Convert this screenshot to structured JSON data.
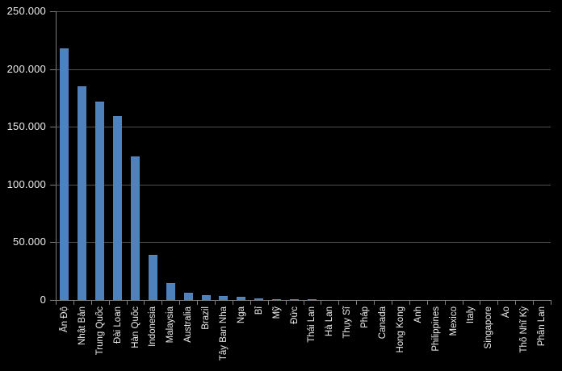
{
  "chart_data": {
    "type": "bar",
    "title": "",
    "xlabel": "",
    "ylabel": "",
    "categories": [
      "Ấn Độ",
      "Nhật Bản",
      "Trung Quốc",
      "Đài Loan",
      "Hàn Quốc",
      "Indonesia",
      "Malaysia",
      "Australia",
      "Brazil",
      "Tây Ban Nha",
      "Nga",
      "Bỉ",
      "Mỹ",
      "Đức",
      "Thái Lan",
      "Hà Lan",
      "Thụy Sĩ",
      "Pháp",
      "Canada",
      "Hong Kong",
      "Anh",
      "Philippines",
      "Mexico",
      "Italy",
      "Singapore",
      "Áo",
      "Thổ Nhĩ Kỳ",
      "Phần Lan"
    ],
    "values": [
      218000,
      185000,
      172000,
      159000,
      124000,
      39000,
      15000,
      6500,
      4200,
      3500,
      2800,
      1600,
      1000,
      500,
      400,
      200,
      150,
      120,
      100,
      90,
      80,
      70,
      60,
      50,
      40,
      30,
      20,
      10
    ],
    "ylim": [
      0,
      250000
    ],
    "ytick_interval": 50000,
    "ytick_labels": [
      "250.000",
      "200.000",
      "150.000",
      "100.000",
      "50.000",
      "0"
    ],
    "grid": true,
    "legend_position": "none",
    "colors": {
      "background": "#000000",
      "bar": "#4f81bd",
      "gridline": "#4e4e4e",
      "axis": "#7a7a7a",
      "text": "#ececec"
    }
  }
}
